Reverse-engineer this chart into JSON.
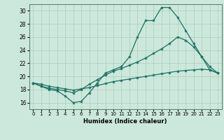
{
  "xlabel": "Humidex (Indice chaleur)",
  "bg_color": "#cce8dc",
  "grid_color": "#aaccbb",
  "line_color": "#1a7060",
  "xlim": [
    -0.5,
    23.5
  ],
  "ylim": [
    15.0,
    31.0
  ],
  "yticks": [
    16,
    18,
    20,
    22,
    24,
    26,
    28,
    30
  ],
  "xticks": [
    0,
    1,
    2,
    3,
    4,
    5,
    6,
    7,
    8,
    9,
    10,
    11,
    12,
    13,
    14,
    15,
    16,
    17,
    18,
    19,
    20,
    21,
    22,
    23
  ],
  "series1_x": [
    0,
    1,
    2,
    3,
    4,
    5,
    6,
    7,
    8,
    9,
    10,
    11,
    12,
    13,
    14,
    15,
    16,
    17,
    18,
    19,
    20,
    21,
    22,
    23
  ],
  "series1_y": [
    19.0,
    18.5,
    18.0,
    17.8,
    17.0,
    16.0,
    16.2,
    17.5,
    19.0,
    20.5,
    21.0,
    21.5,
    23.0,
    26.0,
    28.5,
    28.5,
    30.5,
    30.5,
    29.0,
    27.0,
    25.0,
    23.0,
    21.0,
    20.5
  ],
  "series2_x": [
    0,
    1,
    2,
    3,
    4,
    5,
    6,
    7,
    8,
    9,
    10,
    11,
    12,
    13,
    14,
    15,
    16,
    17,
    18,
    19,
    20,
    21,
    22,
    23
  ],
  "series2_y": [
    19.0,
    18.5,
    18.2,
    18.0,
    17.8,
    17.5,
    18.0,
    18.8,
    19.5,
    20.2,
    20.8,
    21.2,
    21.7,
    22.2,
    22.8,
    23.5,
    24.2,
    25.0,
    26.0,
    25.5,
    24.5,
    23.0,
    21.5,
    20.5
  ],
  "series3_x": [
    0,
    1,
    2,
    3,
    4,
    5,
    6,
    7,
    8,
    9,
    10,
    11,
    12,
    13,
    14,
    15,
    16,
    17,
    18,
    19,
    20,
    21,
    22,
    23
  ],
  "series3_y": [
    19.0,
    18.8,
    18.5,
    18.3,
    18.1,
    17.9,
    18.1,
    18.3,
    18.6,
    18.9,
    19.2,
    19.4,
    19.6,
    19.8,
    20.0,
    20.2,
    20.4,
    20.6,
    20.8,
    20.9,
    21.0,
    21.1,
    21.0,
    20.5
  ]
}
